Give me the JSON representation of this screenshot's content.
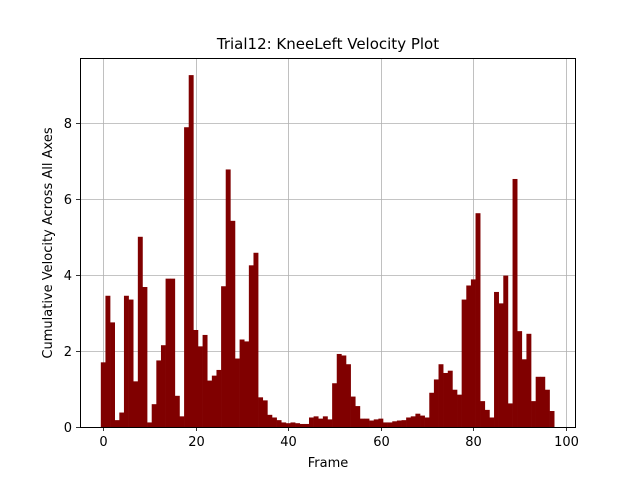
{
  "chart_data": {
    "type": "bar",
    "title": "Trial12: KneeLeft Velocity Plot",
    "xlabel": "Frame",
    "ylabel": "Cumulative Velocity Across All Axes",
    "xlim": [
      -5,
      102
    ],
    "ylim": [
      0,
      9.7
    ],
    "xticks": [
      0,
      20,
      40,
      60,
      80,
      100
    ],
    "yticks": [
      0,
      2,
      4,
      6,
      8
    ],
    "grid": true,
    "bar_color": "#800000",
    "x": [
      0,
      1,
      2,
      3,
      4,
      5,
      6,
      7,
      8,
      9,
      10,
      11,
      12,
      13,
      14,
      15,
      16,
      17,
      18,
      19,
      20,
      21,
      22,
      23,
      24,
      25,
      26,
      27,
      28,
      29,
      30,
      31,
      32,
      33,
      34,
      35,
      36,
      37,
      38,
      39,
      40,
      41,
      42,
      43,
      44,
      45,
      46,
      47,
      48,
      49,
      50,
      51,
      52,
      53,
      54,
      55,
      56,
      57,
      58,
      59,
      60,
      61,
      62,
      63,
      64,
      65,
      66,
      67,
      68,
      69,
      70,
      71,
      72,
      73,
      74,
      75,
      76,
      77,
      78,
      79,
      80,
      81,
      82,
      83,
      84,
      85,
      86,
      87,
      88,
      89,
      90,
      91,
      92,
      93,
      94,
      95,
      96,
      97
    ],
    "values": [
      1.7,
      3.45,
      2.75,
      0.18,
      0.38,
      3.45,
      3.35,
      1.2,
      5.0,
      3.68,
      0.12,
      0.6,
      1.75,
      2.15,
      3.9,
      3.9,
      0.82,
      0.28,
      7.88,
      9.25,
      2.55,
      2.12,
      2.42,
      1.22,
      1.35,
      1.5,
      3.7,
      6.77,
      5.42,
      1.8,
      2.3,
      2.25,
      4.25,
      4.58,
      0.78,
      0.7,
      0.32,
      0.25,
      0.18,
      0.12,
      0.1,
      0.12,
      0.1,
      0.08,
      0.08,
      0.25,
      0.28,
      0.22,
      0.28,
      0.2,
      1.15,
      1.92,
      1.88,
      1.65,
      0.8,
      0.55,
      0.22,
      0.22,
      0.17,
      0.2,
      0.22,
      0.12,
      0.12,
      0.15,
      0.17,
      0.18,
      0.25,
      0.28,
      0.35,
      0.3,
      0.25,
      0.9,
      1.25,
      1.65,
      1.42,
      1.48,
      0.98,
      0.85,
      3.35,
      3.72,
      3.88,
      5.62,
      0.68,
      0.45,
      0.25,
      3.55,
      3.25,
      3.98,
      0.62,
      6.52,
      2.52,
      1.78,
      2.45,
      0.68,
      1.32,
      1.32,
      0.98,
      0.42
    ]
  }
}
